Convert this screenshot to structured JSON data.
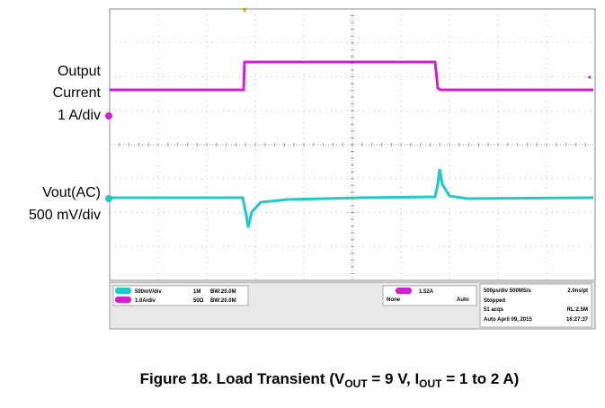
{
  "labels": {
    "output": [
      "Output",
      "Current",
      "1 A/div"
    ],
    "vout": [
      "Vout(AC)",
      "500 mV/div"
    ]
  },
  "status": {
    "ch_left": [
      "500mV/div",
      "1.0A/div"
    ],
    "ch_mid": [
      "BW:20.0M",
      "BW:20.0M"
    ],
    "ch_imp": [
      "1M",
      "50Ω"
    ],
    "trigger": [
      "1.52A",
      "None",
      "Auto"
    ],
    "acq": [
      "500µs/div  500MS/s",
      "2.0ns/pt",
      "Stopped",
      "51 acqs",
      "RL:2.5M",
      "Auto   April 09, 2015",
      "16:27:37"
    ]
  },
  "caption": [
    "Figure 18. Load Transient (V",
    "OUT",
    " = 9 V, I",
    "OUT",
    " = 1 to 2 A)"
  ]
}
